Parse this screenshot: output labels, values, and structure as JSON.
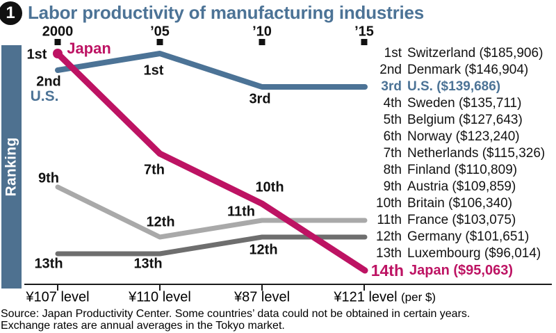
{
  "badge_number": "1",
  "title": "Labor productivity of manufacturing industries",
  "axis": {
    "y_label": "Ranking",
    "per_dollar_note": "(per $)"
  },
  "chart_data": {
    "type": "line",
    "title": "Labor productivity of manufacturing industries",
    "x": [
      "2000",
      "’05",
      "’10",
      "’15"
    ],
    "ylabel": "Ranking",
    "ylim": [
      1,
      14
    ],
    "y_axis_inverted": true,
    "legend_position": "inline-labels",
    "grid": false,
    "series": [
      {
        "name": "Germany",
        "color": "#6e6e6e",
        "width": 7,
        "values": [
          13,
          13,
          12,
          12
        ]
      },
      {
        "name": "France",
        "color": "#a9a9a9",
        "width": 7,
        "values": [
          9,
          12,
          11,
          11
        ]
      },
      {
        "name": "U.S.",
        "color": "#4c7396",
        "width": 8,
        "values": [
          2,
          1,
          3,
          3
        ]
      },
      {
        "name": "Japan",
        "color": "#bd1363",
        "width": 9,
        "values": [
          1,
          7,
          10,
          14
        ],
        "start_dot": true
      }
    ],
    "x_axis_secondary": [
      "¥107 level",
      "¥110 level",
      "¥87 level",
      "¥121 level"
    ],
    "annotations": [
      {
        "text": "1st",
        "series": "Japan",
        "x": "2000"
      },
      {
        "text": "Japan",
        "series": "Japan"
      },
      {
        "text": "2nd",
        "series": "U.S.",
        "x": "2000"
      },
      {
        "text": "U.S.",
        "series": "U.S."
      },
      {
        "text": "1st",
        "series": "U.S.",
        "x": "’05"
      },
      {
        "text": "7th",
        "series": "Japan",
        "x": "’05"
      },
      {
        "text": "9th",
        "series": "France",
        "x": "2000"
      },
      {
        "text": "3rd",
        "series": "U.S.",
        "x": "’10"
      },
      {
        "text": "10th",
        "series": "Japan",
        "x": "’10"
      },
      {
        "text": "11th",
        "series": "France",
        "x": "’10"
      },
      {
        "text": "12th",
        "series": "France",
        "x": "’05"
      },
      {
        "text": "12th",
        "series": "Germany",
        "x": "’10"
      },
      {
        "text": "13th",
        "series": "Germany",
        "x": "2000"
      },
      {
        "text": "13th",
        "series": "Germany",
        "x": "’05"
      }
    ]
  },
  "ranking_list": [
    {
      "rank": "1st",
      "entry": "Switzerland ($185,906)"
    },
    {
      "rank": "2nd",
      "entry": "Denmark ($146,904)"
    },
    {
      "rank": "3rd",
      "entry": "U.S. ($139,686)"
    },
    {
      "rank": "4th",
      "entry": "Sweden ($135,711)"
    },
    {
      "rank": "5th",
      "entry": "Belgium ($127,643)"
    },
    {
      "rank": "6th",
      "entry": "Norway ($123,240)"
    },
    {
      "rank": "7th",
      "entry": "Netherlands ($115,326)"
    },
    {
      "rank": "8th",
      "entry": "Finland ($110,809)"
    },
    {
      "rank": "9th",
      "entry": "Austria ($109,859)"
    },
    {
      "rank": "10th",
      "entry": "Britain ($106,340)"
    },
    {
      "rank": "11th",
      "entry": "France ($103,075)"
    },
    {
      "rank": "12th",
      "entry": "Germany ($101,651)"
    },
    {
      "rank": "13th",
      "entry": "Luxembourg ($96,014)"
    },
    {
      "rank": "14th",
      "entry": "Japan ($95,063)"
    }
  ],
  "source_line1": "Source: Japan Productivity Center. Some countries’ data could not be obtained in certain years.",
  "source_line2": "Exchange rates are annual averages in the Tokyo market."
}
